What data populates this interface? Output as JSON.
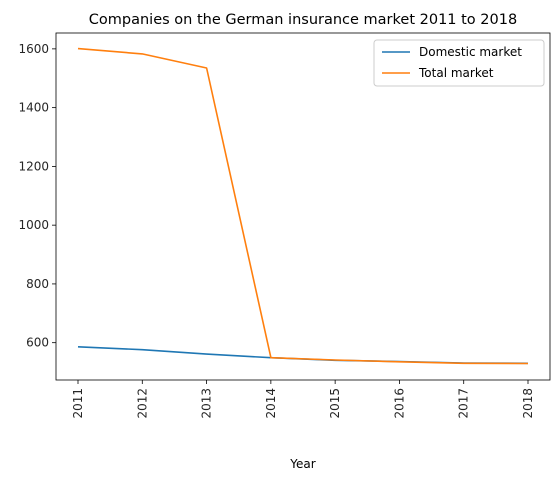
{
  "chart_data": {
    "type": "line",
    "title": "Companies on the German insurance market 2011 to 2018",
    "xlabel": "Year",
    "ylabel": "",
    "x": [
      "2011",
      "2012",
      "2013",
      "2014",
      "2015",
      "2016",
      "2017",
      "2018"
    ],
    "yticks": [
      600,
      800,
      1000,
      1200,
      1400,
      1600
    ],
    "ylim": [
      473,
      1654
    ],
    "grid": false,
    "legend_position": "top-right",
    "series": [
      {
        "name": "Domestic market",
        "color": "#1f77b4",
        "values": [
          586,
          576,
          561,
          549,
          540,
          536,
          531,
          530
        ]
      },
      {
        "name": "Total market",
        "color": "#ff7f0e",
        "values": [
          1601,
          1583,
          1535,
          549,
          541,
          535,
          530,
          529
        ]
      }
    ]
  }
}
